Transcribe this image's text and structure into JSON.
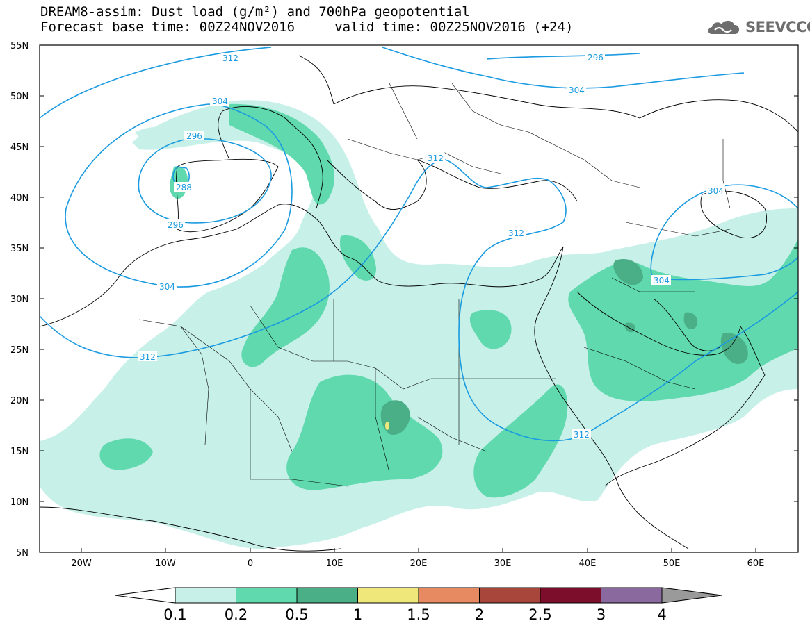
{
  "title": {
    "line1": "DREAM8-assim: Dust load (g/m²) and 700hPa geopotential",
    "line2": "Forecast base time: 00Z24NOV2016     valid time: 00Z25NOV2016 (+24)"
  },
  "logo": {
    "text": "SEEVCCC",
    "icon": "cloud-logo-icon"
  },
  "axes": {
    "lat_labels": [
      "55N",
      "50N",
      "45N",
      "40N",
      "35N",
      "30N",
      "25N",
      "20N",
      "15N",
      "10N",
      "5N"
    ],
    "lon_labels": [
      "20W",
      "10W",
      "0",
      "10E",
      "20E",
      "30E",
      "40E",
      "50E",
      "60E"
    ],
    "lon_range": [
      -25,
      65
    ],
    "lat_range": [
      5,
      55
    ]
  },
  "contours": {
    "color": "#1a9ae0",
    "labels": [
      "312",
      "296",
      "304",
      "304",
      "296",
      "288",
      "296",
      "304",
      "312",
      "312",
      "304",
      "312",
      "312",
      "304"
    ]
  },
  "colorbar": {
    "ticks": [
      "0.1",
      "0.2",
      "0.5",
      "1",
      "1.5",
      "2",
      "2.5",
      "3",
      "4"
    ],
    "colors": [
      "#c6f0e8",
      "#5fd9ad",
      "#4aaf86",
      "#f0e77a",
      "#e78a62",
      "#a9463b",
      "#7c0e2c",
      "#8a6a9e",
      "#9a9a9a"
    ]
  },
  "dust_colors": {
    "low": "#c6f0e8",
    "mid": "#5fd9ad",
    "high": "#4aaf86",
    "peak": "#f0e77a"
  }
}
